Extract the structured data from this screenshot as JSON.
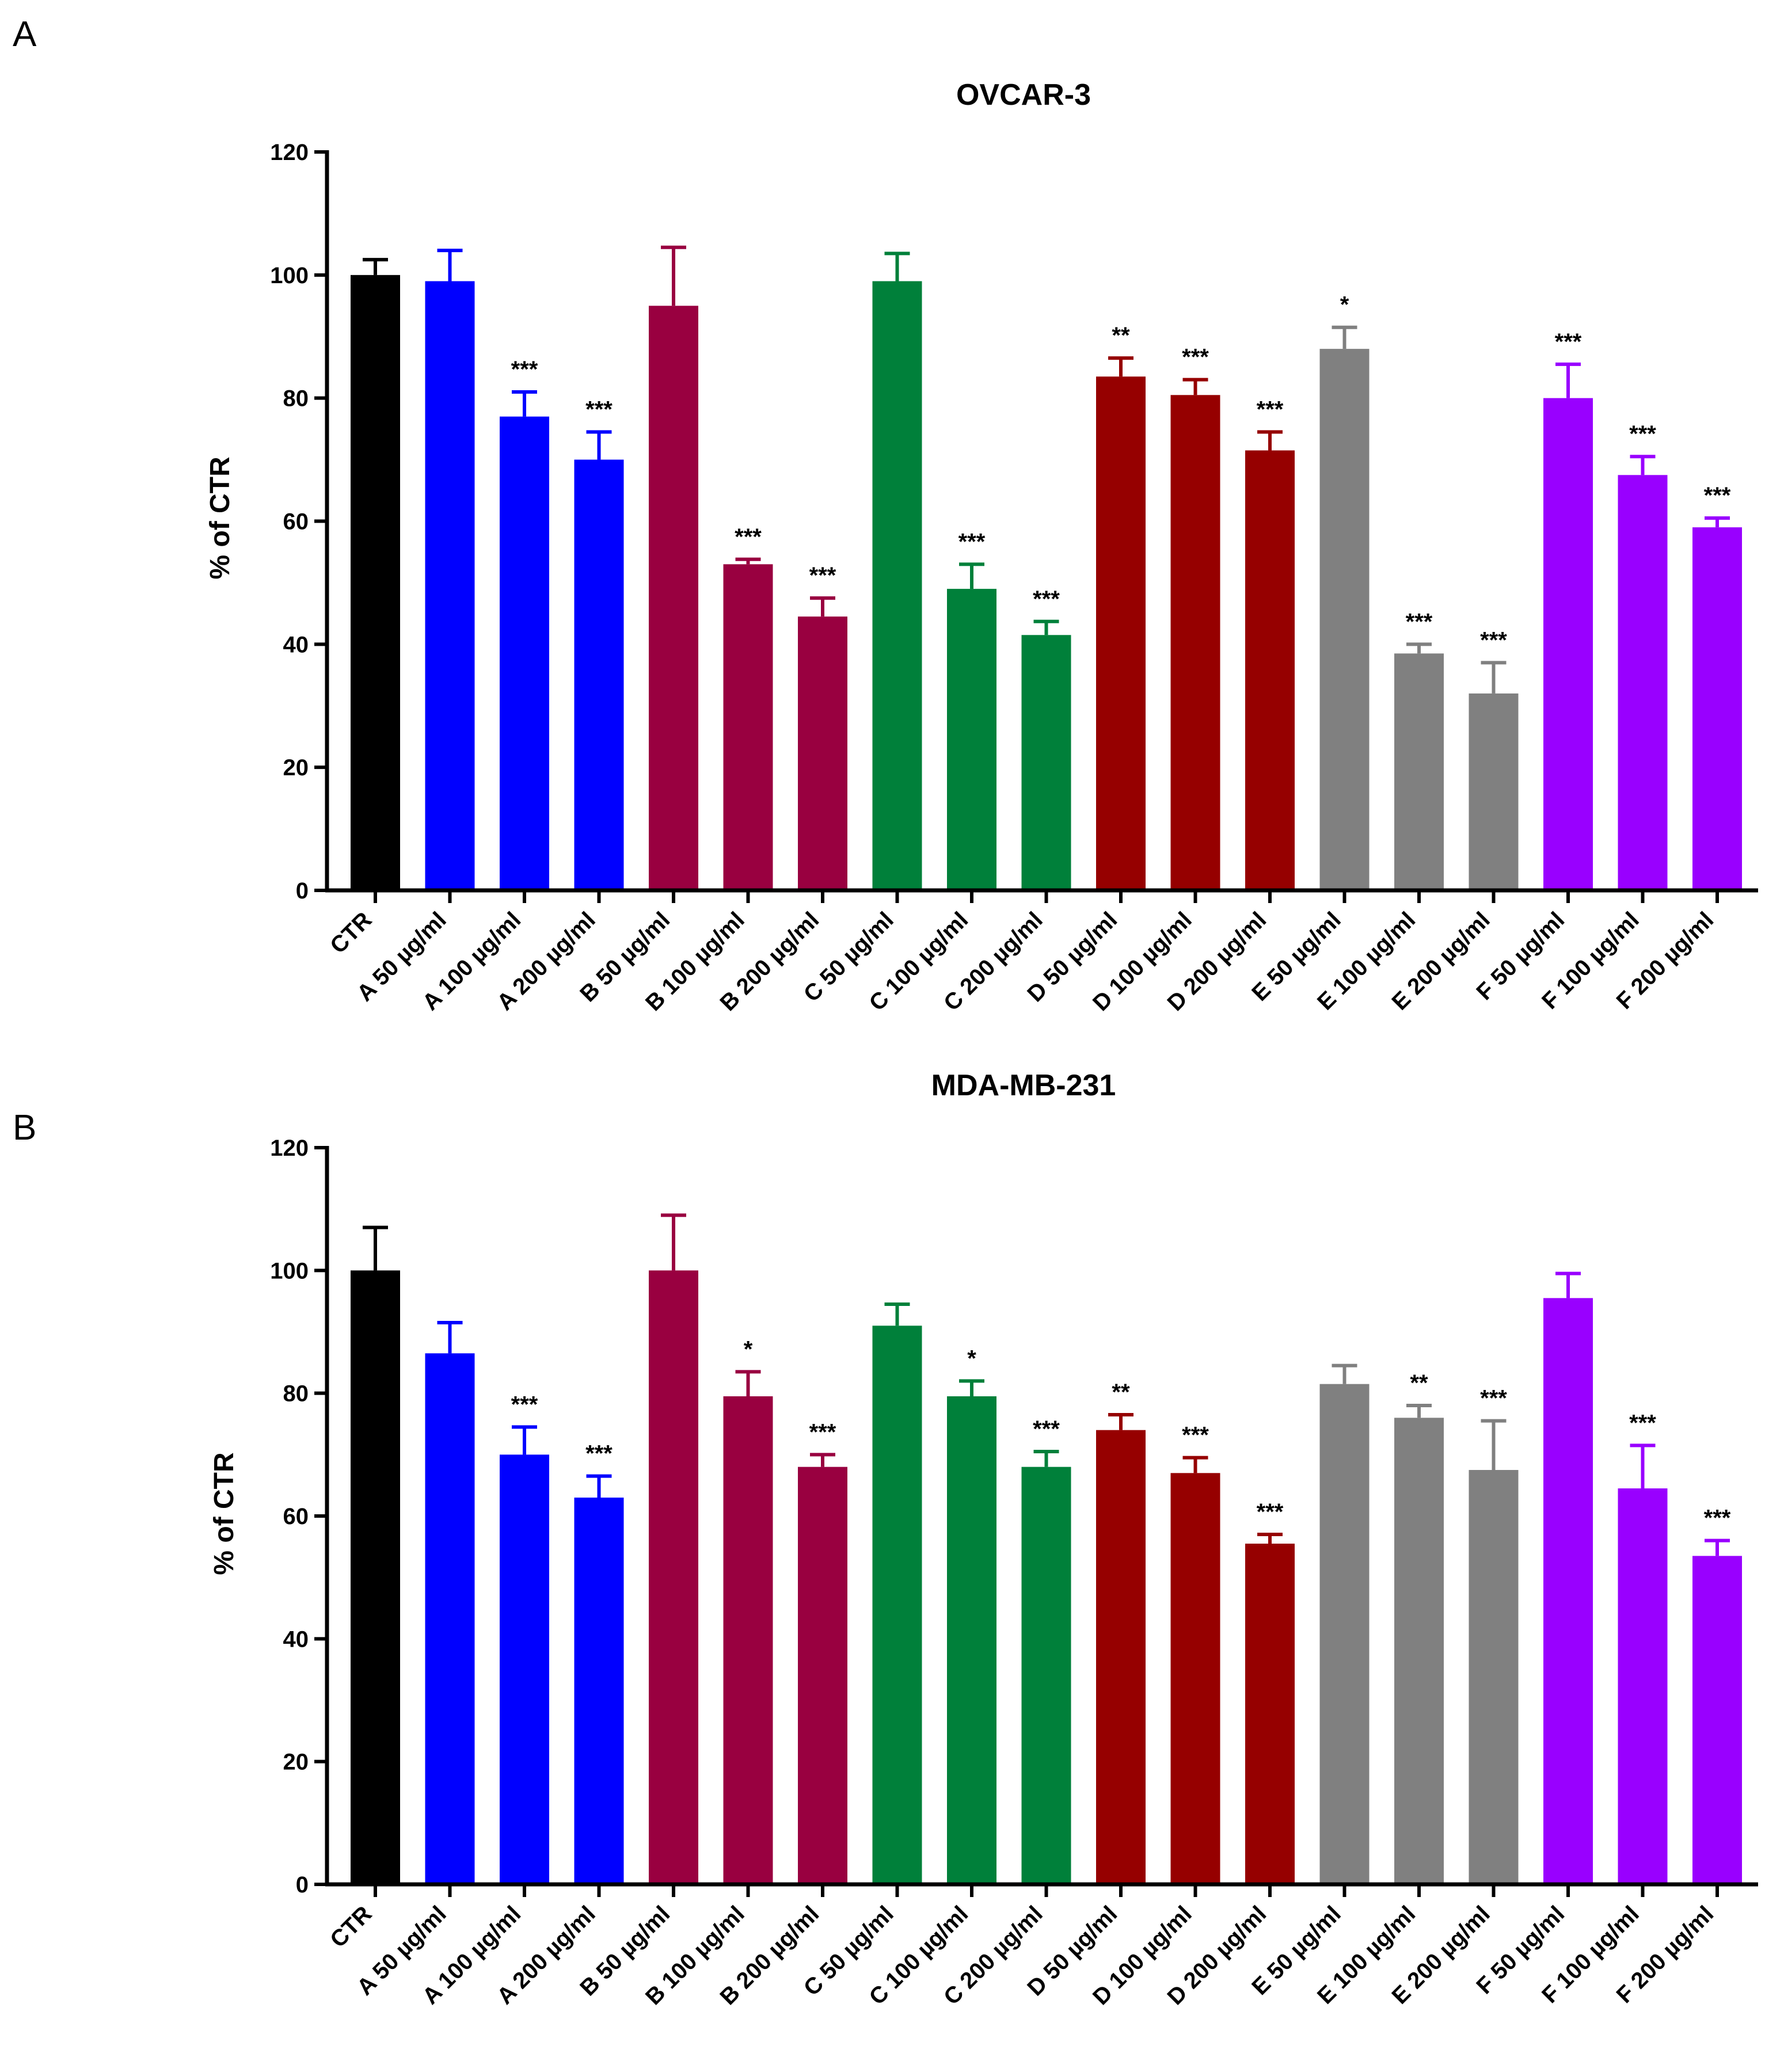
{
  "panels": [
    "A",
    "B"
  ],
  "colors": {
    "CTR": "#000000",
    "A": "#0000ff",
    "B": "#990040",
    "C": "#00803a",
    "D": "#960000",
    "E": "#808080",
    "F": "#9900ff"
  },
  "chart_data": [
    {
      "type": "bar",
      "panel": "A",
      "title": "OVCAR-3",
      "xlabel": "",
      "ylabel": "% of CTR",
      "ylim": [
        0,
        120
      ],
      "yticks": [
        0,
        20,
        40,
        60,
        80,
        100,
        120
      ],
      "categories": [
        "CTR",
        "A 50 µg/ml",
        "A 100 µg/ml",
        "A 200 µg/ml",
        "B 50 µg/ml",
        "B 100 µg/ml",
        "B 200 µg/ml",
        "C 50 µg/ml",
        "C 100 µg/ml",
        "C 200 µg/ml",
        "D 50 µg/ml",
        "D 100 µg/ml",
        "D 200 µg/ml",
        "E 50 µg/ml",
        "E 100 µg/ml",
        "E 200 µg/ml",
        "F 50 µg/ml",
        "F 100 µg/ml",
        "F 200 µg/ml"
      ],
      "groups": [
        "CTR",
        "A",
        "A",
        "A",
        "B",
        "B",
        "B",
        "C",
        "C",
        "C",
        "D",
        "D",
        "D",
        "E",
        "E",
        "E",
        "F",
        "F",
        "F"
      ],
      "values": [
        100,
        99,
        77,
        70,
        95,
        53,
        44.5,
        99,
        49,
        41.5,
        83.5,
        80.5,
        71.5,
        88,
        38.5,
        32,
        80,
        67.5,
        59
      ],
      "errors": [
        2.5,
        5,
        4,
        4.5,
        9.5,
        0.8,
        3,
        4.5,
        4,
        2.2,
        3,
        2.5,
        3,
        3.5,
        1.5,
        5,
        5.5,
        3,
        1.5
      ],
      "significance": [
        "",
        "",
        "***",
        "***",
        "",
        "***",
        "***",
        "",
        "***",
        "***",
        "**",
        "***",
        "***",
        "*",
        "***",
        "***",
        "***",
        "***",
        "***"
      ]
    },
    {
      "type": "bar",
      "panel": "B",
      "title": "MDA-MB-231",
      "xlabel": "",
      "ylabel": "% of CTR",
      "ylim": [
        0,
        120
      ],
      "yticks": [
        0,
        20,
        40,
        60,
        80,
        100,
        120
      ],
      "categories": [
        "CTR",
        "A 50 µg/ml",
        "A 100 µg/ml",
        "A 200 µg/ml",
        "B 50 µg/ml",
        "B 100 µg/ml",
        "B 200 µg/ml",
        "C 50 µg/ml",
        "C 100 µg/ml",
        "C 200 µg/ml",
        "D 50 µg/ml",
        "D 100 µg/ml",
        "D 200 µg/ml",
        "E 50 µg/ml",
        "E 100 µg/ml",
        "E 200 µg/ml",
        "F 50 µg/ml",
        "F 100 µg/ml",
        "F 200 µg/ml"
      ],
      "groups": [
        "CTR",
        "A",
        "A",
        "A",
        "B",
        "B",
        "B",
        "C",
        "C",
        "C",
        "D",
        "D",
        "D",
        "E",
        "E",
        "E",
        "F",
        "F",
        "F"
      ],
      "values": [
        100,
        86.5,
        70,
        63,
        100,
        79.5,
        68,
        91,
        79.5,
        68,
        74,
        67,
        55.5,
        81.5,
        76,
        67.5,
        95.5,
        64.5,
        53.5
      ],
      "errors": [
        7,
        5,
        4.5,
        3.5,
        9,
        4,
        2,
        3.5,
        2.5,
        2.5,
        2.5,
        2.5,
        1.5,
        3,
        2,
        8,
        4,
        7,
        2.5
      ],
      "significance": [
        "",
        "",
        "***",
        "***",
        "",
        "*",
        "***",
        "",
        "*",
        "***",
        "**",
        "***",
        "***",
        "",
        "**",
        "***",
        "",
        "***",
        "***"
      ]
    }
  ]
}
